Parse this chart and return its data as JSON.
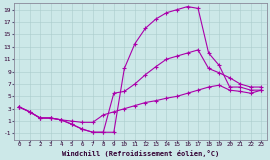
{
  "xlabel": "Windchill (Refroidissement éolien,°C)",
  "bg_color": "#cce8e8",
  "grid_color": "#aacccc",
  "line_color": "#aa00aa",
  "xlim": [
    -0.5,
    23.5
  ],
  "ylim": [
    -2,
    20
  ],
  "xticks": [
    0,
    1,
    2,
    3,
    4,
    5,
    6,
    7,
    8,
    9,
    10,
    11,
    12,
    13,
    14,
    15,
    16,
    17,
    18,
    19,
    20,
    21,
    22,
    23
  ],
  "yticks": [
    -1,
    1,
    3,
    5,
    7,
    9,
    11,
    13,
    15,
    17,
    19
  ],
  "curve1_x": [
    0,
    1,
    2,
    3,
    4,
    5,
    6,
    7,
    8,
    9,
    10,
    11,
    12,
    13,
    14,
    15,
    16,
    17,
    18,
    19,
    20,
    21,
    22,
    23
  ],
  "curve1_y": [
    3.3,
    2.5,
    1.5,
    1.5,
    1.2,
    0.5,
    -0.3,
    -0.8,
    -0.8,
    -0.8,
    9.5,
    13.5,
    16.0,
    17.5,
    18.5,
    19.0,
    19.5,
    19.2,
    12.0,
    10.0,
    6.5,
    6.5,
    6.0,
    6.0
  ],
  "curve2_x": [
    0,
    1,
    2,
    3,
    4,
    5,
    6,
    7,
    8,
    9,
    10,
    11,
    12,
    13,
    14,
    15,
    16,
    17,
    18,
    19,
    20,
    21,
    22,
    23
  ],
  "curve2_y": [
    3.3,
    2.5,
    1.5,
    1.5,
    1.2,
    0.5,
    -0.3,
    -0.8,
    -0.8,
    5.5,
    5.8,
    7.0,
    8.5,
    9.8,
    11.0,
    11.5,
    12.0,
    12.5,
    9.5,
    8.8,
    8.0,
    7.0,
    6.5,
    6.5
  ],
  "curve3_x": [
    0,
    1,
    2,
    3,
    4,
    5,
    6,
    7,
    8,
    9,
    10,
    11,
    12,
    13,
    14,
    15,
    16,
    17,
    18,
    19,
    20,
    21,
    22,
    23
  ],
  "curve3_y": [
    3.3,
    2.5,
    1.5,
    1.5,
    1.2,
    1.0,
    0.8,
    0.8,
    2.0,
    2.5,
    3.0,
    3.5,
    4.0,
    4.3,
    4.7,
    5.0,
    5.5,
    6.0,
    6.5,
    6.8,
    6.0,
    5.8,
    5.5,
    6.0
  ]
}
